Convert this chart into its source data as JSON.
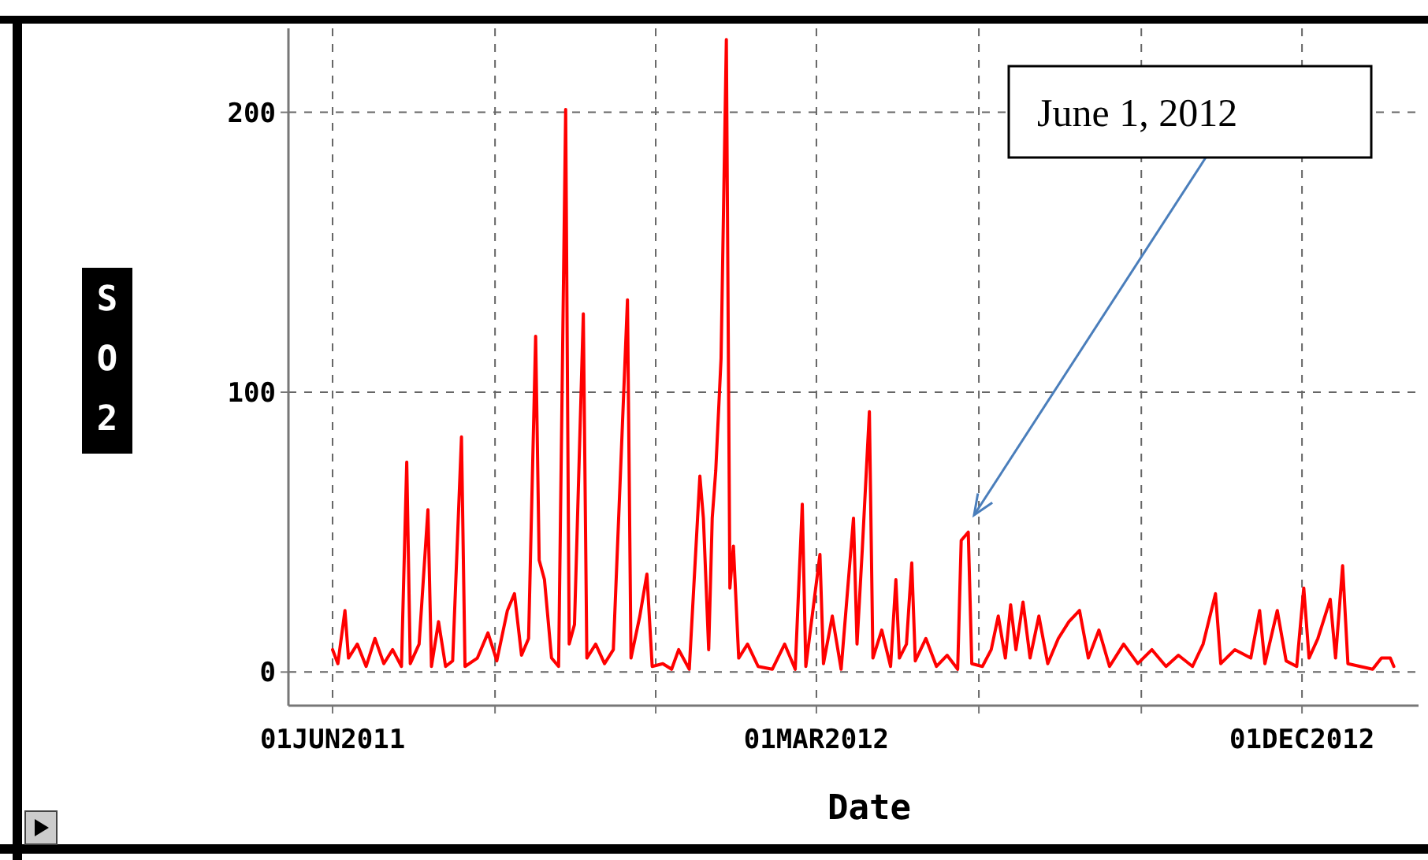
{
  "chart_data": {
    "type": "line",
    "xlabel": "Date",
    "ylabel": "SO2",
    "x": [
      "2011-06-01",
      "2011-06-04",
      "2011-06-08",
      "2011-06-10",
      "2011-06-15",
      "2011-06-20",
      "2011-06-25",
      "2011-06-30",
      "2011-07-05",
      "2011-07-10",
      "2011-07-13",
      "2011-07-15",
      "2011-07-20",
      "2011-07-25",
      "2011-07-27",
      "2011-07-31",
      "2011-08-04",
      "2011-08-08",
      "2011-08-13",
      "2011-08-15",
      "2011-08-22",
      "2011-08-28",
      "2011-09-02",
      "2011-09-08",
      "2011-09-12",
      "2011-09-16",
      "2011-09-20",
      "2011-09-24",
      "2011-09-26",
      "2011-09-29",
      "2011-10-03",
      "2011-10-07",
      "2011-10-11",
      "2011-10-13",
      "2011-10-16",
      "2011-10-21",
      "2011-10-23",
      "2011-10-28",
      "2011-11-02",
      "2011-11-07",
      "2011-11-15",
      "2011-11-17",
      "2011-11-22",
      "2011-11-26",
      "2011-11-29",
      "2011-12-05",
      "2011-12-10",
      "2011-12-14",
      "2011-12-20",
      "2011-12-26",
      "2011-12-28",
      "2011-12-31",
      "2012-01-02",
      "2012-01-04",
      "2012-01-07",
      "2012-01-10",
      "2012-01-12",
      "2012-01-14",
      "2012-01-17",
      "2012-01-22",
      "2012-01-28",
      "2012-02-05",
      "2012-02-12",
      "2012-02-18",
      "2012-02-22",
      "2012-02-24",
      "2012-03-03",
      "2012-03-05",
      "2012-03-10",
      "2012-03-15",
      "2012-03-22",
      "2012-03-24",
      "2012-03-27",
      "2012-03-31",
      "2012-04-02",
      "2012-04-07",
      "2012-04-12",
      "2012-04-15",
      "2012-04-17",
      "2012-04-21",
      "2012-04-24",
      "2012-04-26",
      "2012-05-02",
      "2012-05-08",
      "2012-05-14",
      "2012-05-20",
      "2012-05-22",
      "2012-05-26",
      "2012-05-28",
      "2012-06-03",
      "2012-06-08",
      "2012-06-12",
      "2012-06-16",
      "2012-06-19",
      "2012-06-22",
      "2012-06-26",
      "2012-06-30",
      "2012-07-05",
      "2012-07-10",
      "2012-07-16",
      "2012-07-22",
      "2012-07-28",
      "2012-08-02",
      "2012-08-08",
      "2012-08-14",
      "2012-08-22",
      "2012-08-30",
      "2012-09-07",
      "2012-09-15",
      "2012-09-22",
      "2012-09-30",
      "2012-10-06",
      "2012-10-13",
      "2012-10-16",
      "2012-10-24",
      "2012-11-02",
      "2012-11-07",
      "2012-11-10",
      "2012-11-17",
      "2012-11-22",
      "2012-11-28",
      "2012-12-02",
      "2012-12-05",
      "2012-12-10",
      "2012-12-17",
      "2012-12-20",
      "2012-12-24",
      "2012-12-27",
      "2013-01-03",
      "2013-01-10",
      "2013-01-15",
      "2013-01-20",
      "2013-01-22"
    ],
    "series": [
      {
        "color": "#ff0000",
        "values": [
          8,
          3,
          22,
          5,
          10,
          2,
          12,
          3,
          8,
          2,
          75,
          3,
          10,
          58,
          2,
          18,
          2,
          4,
          84,
          2,
          5,
          14,
          4,
          22,
          28,
          6,
          12,
          120,
          40,
          33,
          5,
          2,
          201,
          10,
          17,
          128,
          5,
          10,
          3,
          8,
          133,
          5,
          20,
          35,
          2,
          3,
          1,
          8,
          1,
          70,
          55,
          8,
          55,
          72,
          112,
          226,
          30,
          45,
          5,
          10,
          2,
          1,
          10,
          1,
          60,
          2,
          42,
          3,
          20,
          1,
          55,
          10,
          44,
          93,
          5,
          15,
          2,
          33,
          5,
          10,
          39,
          4,
          12,
          2,
          6,
          1,
          47,
          50,
          3,
          2,
          8,
          20,
          5,
          24,
          8,
          25,
          5,
          20,
          3,
          12,
          18,
          22,
          5,
          15,
          2,
          10,
          3,
          8,
          2,
          6,
          2,
          10,
          28,
          3,
          8,
          5,
          22,
          3,
          22,
          4,
          2,
          30,
          5,
          12,
          26,
          5,
          38,
          3,
          2,
          1,
          5,
          5,
          2
        ]
      }
    ],
    "xlim": [
      "2011-05-07",
      "2013-02-05"
    ],
    "xticks": [
      {
        "value": "2011-06-01",
        "label": "01JUN2011"
      },
      {
        "value": "2011-09-01",
        "label": null
      },
      {
        "value": "2011-12-01",
        "label": null
      },
      {
        "value": "2012-03-01",
        "label": "01MAR2012"
      },
      {
        "value": "2012-06-01",
        "label": null
      },
      {
        "value": "2012-09-01",
        "label": null
      },
      {
        "value": "2012-12-01",
        "label": "01DEC2012"
      }
    ],
    "ylim": [
      -12,
      230
    ],
    "yticks": [
      0,
      100,
      200
    ],
    "grid": true,
    "marker": "none",
    "line_style": "solid",
    "annotations": [
      "June 1, 2012"
    ]
  }
}
